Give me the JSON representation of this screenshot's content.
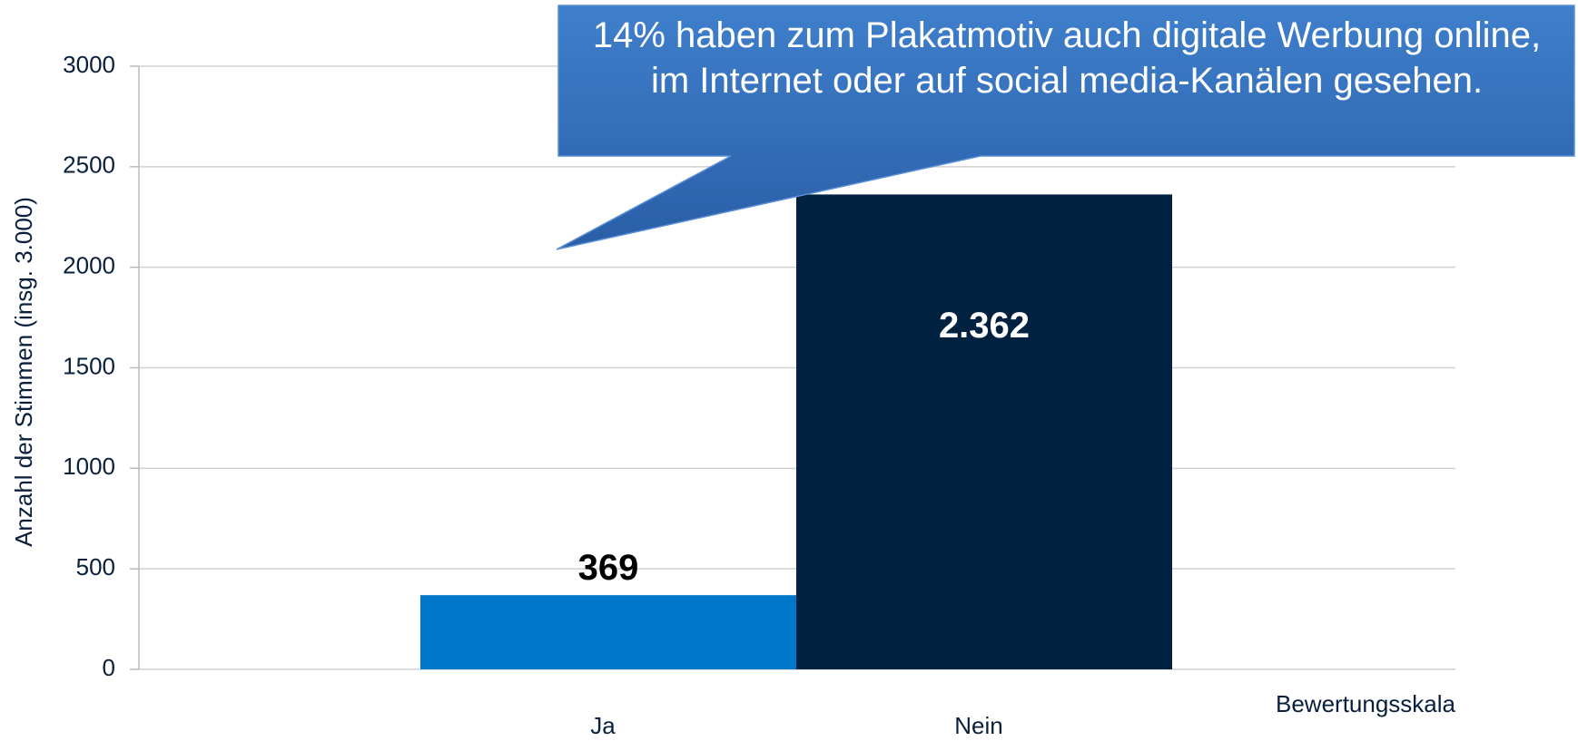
{
  "chart_data": {
    "type": "bar",
    "categories": [
      "Ja",
      "Nein"
    ],
    "values": [
      369,
      2362
    ],
    "value_labels": [
      "369",
      "2.362"
    ],
    "colors": [
      "#0077c8",
      "#002240"
    ],
    "ylim": [
      0,
      3000
    ],
    "yticks": [
      0,
      500,
      1000,
      1500,
      2000,
      2500,
      3000
    ],
    "grid": true,
    "y_label": "Anzahl der Stimmen (insg. 3.000)",
    "x_label": "Bewertungsskala",
    "annotation": "14% haben zum Plakatmotiv auch digitale Werbung online, im Internet oder auf social media-Kanälen gesehen."
  }
}
